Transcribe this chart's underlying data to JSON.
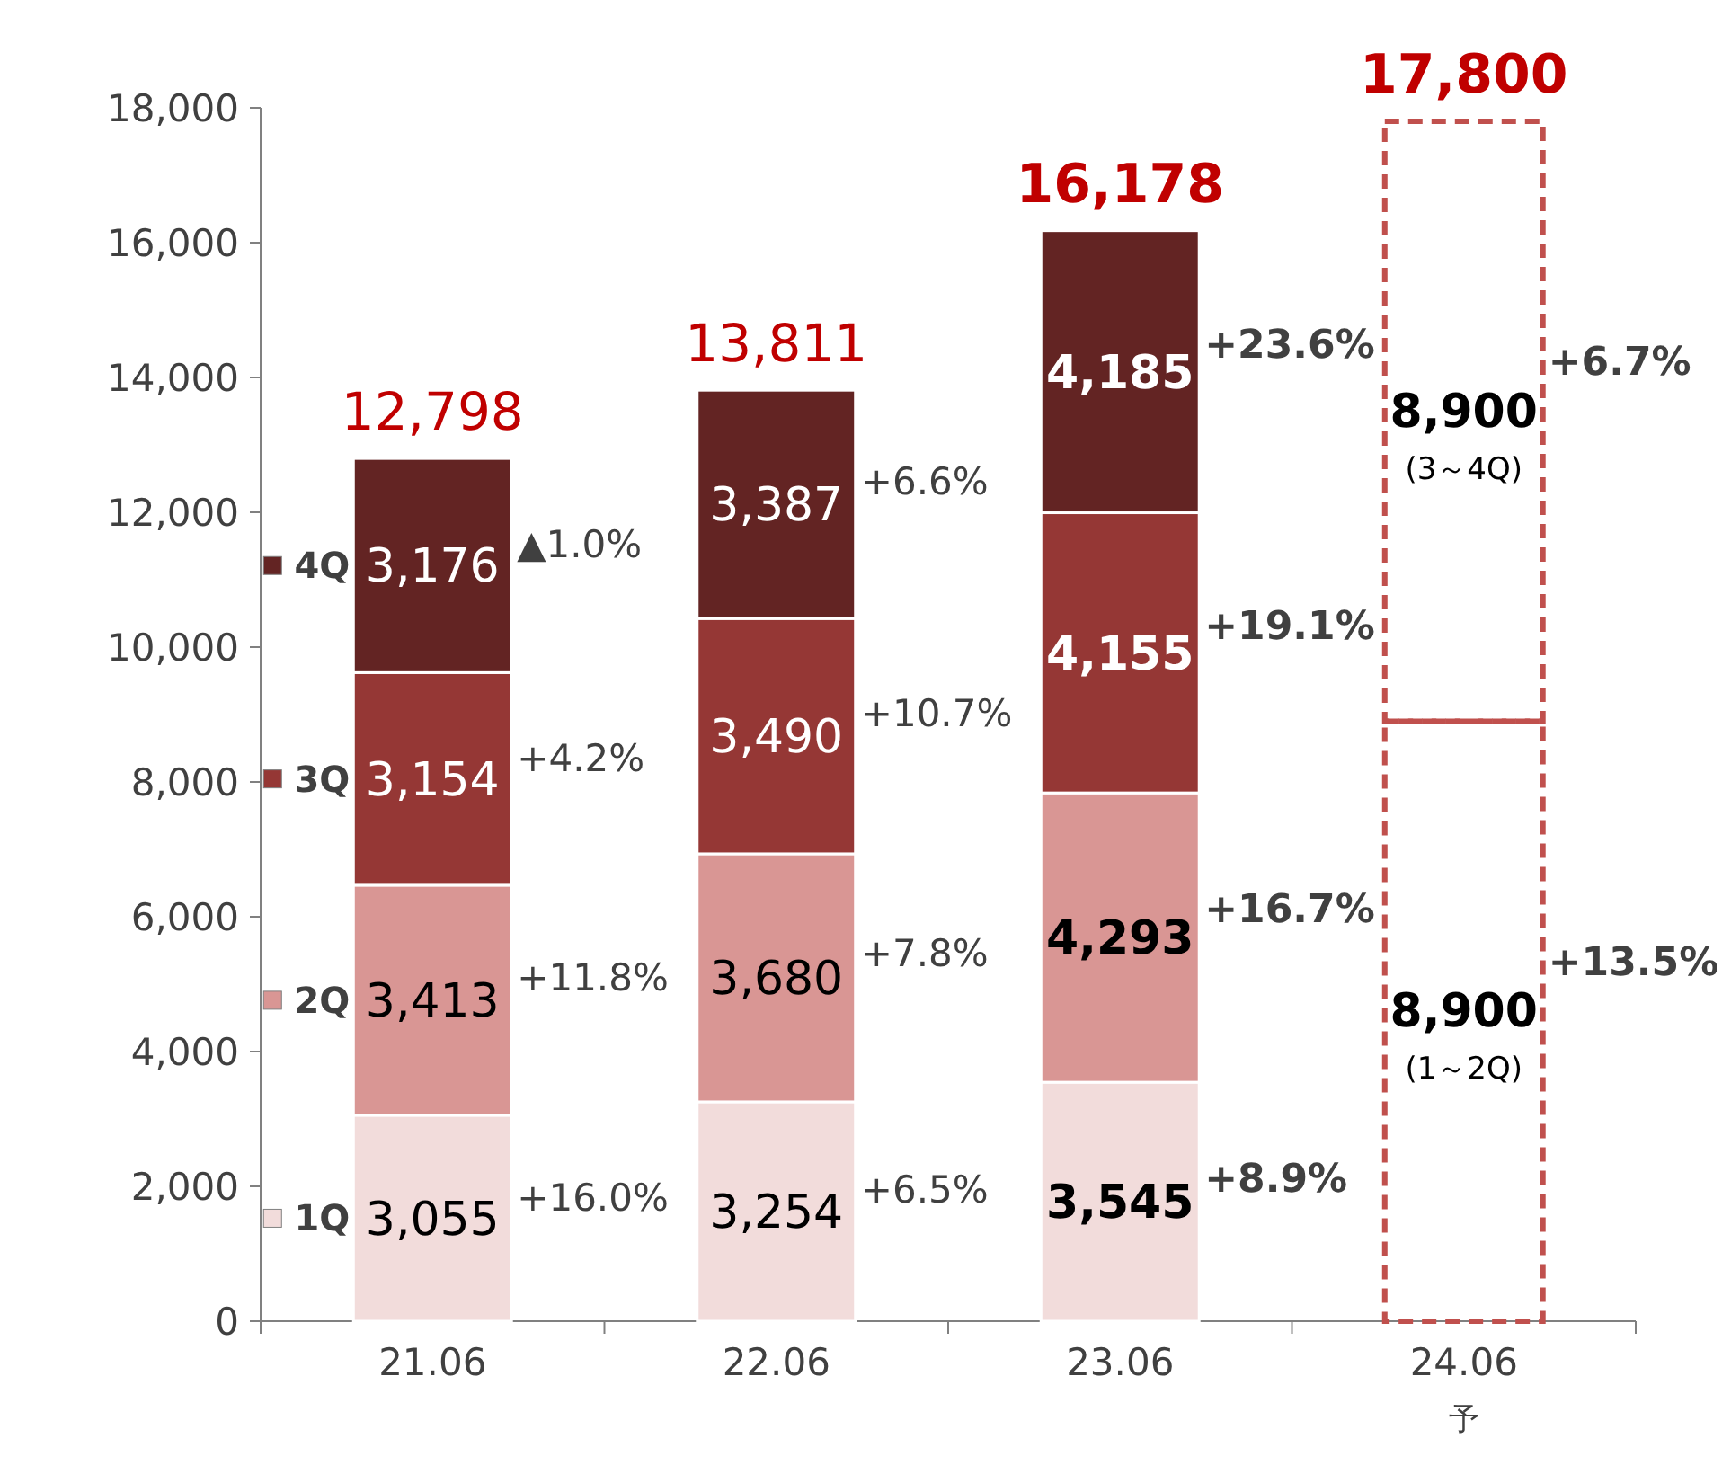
{
  "chart_data": {
    "type": "bar",
    "stacked": true,
    "categories": [
      "21.06",
      "22.06",
      "23.06",
      "24.06$_{予}$"
    ],
    "series": [
      {
        "name": "1Q",
        "color": "#f2dcdb",
        "values": [
          3055,
          3254,
          3545,
          null
        ],
        "value_labels": [
          "3,055",
          "3,254",
          "3,545",
          null
        ]
      },
      {
        "name": "2Q",
        "color": "#d99694",
        "values": [
          3413,
          3680,
          4293,
          null
        ],
        "value_labels": [
          "3,413",
          "3,680",
          "4,293",
          null
        ]
      },
      {
        "name": "3Q",
        "color": "#953735",
        "values": [
          3154,
          3490,
          4155,
          null
        ],
        "value_labels": [
          "3,154",
          "3,490",
          "4,155",
          null
        ]
      },
      {
        "name": "4Q",
        "color": "#632423",
        "values": [
          3176,
          3387,
          4185,
          null
        ],
        "value_labels": [
          "3,176",
          "3,387",
          "4,185",
          null
        ]
      },
      {
        "name": "(1～2Q)",
        "color": "#c0504d",
        "line_style": "dashed",
        "values": [
          null,
          null,
          null,
          8900
        ],
        "value_labels": [
          null,
          null,
          null,
          "8,900"
        ]
      },
      {
        "name": "(3～4Q)",
        "color": "#c0504d",
        "line_style": "dashed",
        "values": [
          null,
          null,
          null,
          8900
        ],
        "value_labels": [
          null,
          null,
          null,
          "8,900"
        ]
      }
    ],
    "totals": [
      "12,798",
      "13,811",
      "16,178",
      "17,800"
    ],
    "ylim": [
      0,
      18000
    ],
    "yticks": [
      {
        "value": 0,
        "label": "0"
      },
      {
        "value": 2000,
        "label": "2,000"
      },
      {
        "value": 4000,
        "label": "4,000"
      },
      {
        "value": 6000,
        "label": "6,000"
      },
      {
        "value": 8000,
        "label": "8,000"
      },
      {
        "value": 10000,
        "label": "10,000"
      },
      {
        "value": 12000,
        "label": "12,000"
      },
      {
        "value": 14000,
        "label": "14,000"
      },
      {
        "value": 16000,
        "label": "16,000"
      },
      {
        "value": 18000,
        "label": "18,000"
      }
    ],
    "grid": false,
    "legend": "left",
    "annotations": [
      "+16.0%",
      "+11.8%",
      "+4.2%",
      "▲1.0%",
      "+6.5%",
      "+7.8%",
      "+10.7%",
      "+6.6%",
      "+8.9%",
      "+16.7%",
      "+19.1%",
      "+23.6%",
      "+13.5%",
      "+6.7%"
    ]
  }
}
